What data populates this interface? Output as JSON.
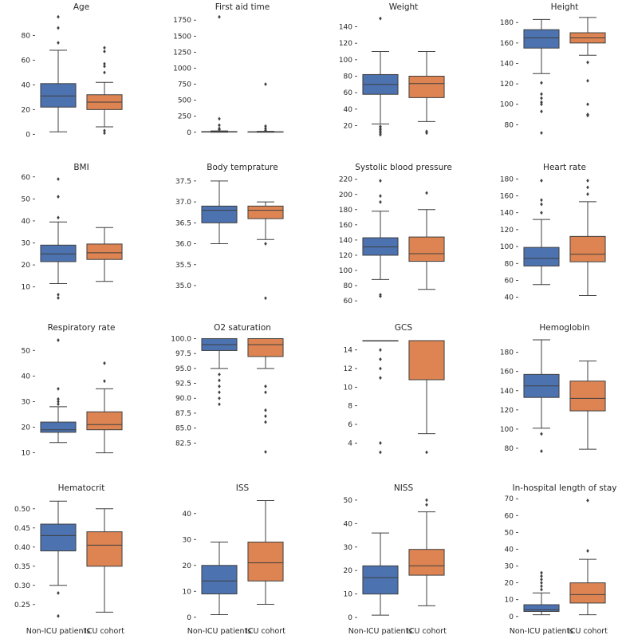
{
  "colors": {
    "non_icu": "#4c72b0",
    "icu": "#dd8452",
    "line": "#3f3f3f",
    "text": "#262626"
  },
  "chart_data": [
    {
      "type": "box",
      "title": "Age",
      "categories": [
        "Non-ICU patients",
        "ICU cohort"
      ],
      "yticks": [
        0,
        20,
        40,
        60,
        80
      ],
      "ylim": [
        -3,
        97
      ],
      "boxes": [
        {
          "whislo": 2,
          "q1": 22,
          "med": 31,
          "q3": 41,
          "whishi": 68,
          "fliers": [
            95,
            86,
            74
          ]
        },
        {
          "whislo": 6,
          "q1": 20,
          "med": 26,
          "q3": 32,
          "whishi": 42,
          "fliers": [
            70,
            67,
            57,
            55,
            50,
            3,
            1
          ]
        }
      ]
    },
    {
      "type": "box",
      "title": "First aid time",
      "categories": [
        "Non-ICU patients",
        "ICU cohort"
      ],
      "yticks": [
        0,
        250,
        500,
        750,
        1000,
        1250,
        1500,
        1750
      ],
      "ylim": [
        -90,
        1840
      ],
      "boxes": [
        {
          "whislo": 0,
          "q1": 3,
          "med": 5,
          "q3": 10,
          "whishi": 20,
          "fliers": [
            1800,
            210,
            110,
            60,
            40
          ]
        },
        {
          "whislo": 0,
          "q1": 2,
          "med": 4,
          "q3": 8,
          "whishi": 15,
          "fliers": [
            750,
            95,
            60,
            30
          ]
        }
      ]
    },
    {
      "type": "box",
      "title": "Weight",
      "categories": [
        "Non-ICU patients",
        "ICU cohort"
      ],
      "yticks": [
        20,
        40,
        60,
        80,
        100,
        120,
        140
      ],
      "ylim": [
        5,
        155
      ],
      "boxes": [
        {
          "whislo": 22,
          "q1": 58,
          "med": 70,
          "q3": 82,
          "whishi": 110,
          "fliers": [
            150,
            19,
            17,
            15,
            13,
            11,
            9
          ]
        },
        {
          "whislo": 25,
          "q1": 54,
          "med": 71,
          "q3": 80,
          "whishi": 110,
          "fliers": [
            13,
            11
          ]
        }
      ]
    },
    {
      "type": "box",
      "title": "Height",
      "categories": [
        "Non-ICU patients",
        "ICU cohort"
      ],
      "yticks": [
        80,
        100,
        120,
        140,
        160,
        180
      ],
      "ylim": [
        67,
        188
      ],
      "boxes": [
        {
          "whislo": 130,
          "q1": 155,
          "med": 165,
          "q3": 173,
          "whishi": 183,
          "fliers": [
            121,
            110,
            106,
            102,
            100,
            93,
            72
          ]
        },
        {
          "whislo": 148,
          "q1": 160,
          "med": 165,
          "q3": 170,
          "whishi": 185,
          "fliers": [
            141,
            123,
            100,
            90,
            89
          ]
        }
      ]
    },
    {
      "type": "box",
      "title": "BMI",
      "categories": [
        "Non-ICU patients",
        "ICU cohort"
      ],
      "yticks": [
        10,
        20,
        30,
        40,
        50,
        60
      ],
      "ylim": [
        3,
        61
      ],
      "boxes": [
        {
          "whislo": 11.5,
          "q1": 21.5,
          "med": 25,
          "q3": 29,
          "whishi": 39.5,
          "fliers": [
            59,
            51,
            41.5,
            6.5,
            5
          ]
        },
        {
          "whislo": 12.5,
          "q1": 22.5,
          "med": 25.5,
          "q3": 29.5,
          "whishi": 37,
          "fliers": []
        }
      ]
    },
    {
      "type": "box",
      "title": "Body temprature",
      "categories": [
        "Non-ICU patients",
        "ICU cohort"
      ],
      "yticks": [
        35.0,
        35.5,
        36.0,
        36.5,
        37.0,
        37.5
      ],
      "ylim": [
        34.6,
        37.65
      ],
      "boxes": [
        {
          "whislo": 36.0,
          "q1": 36.5,
          "med": 36.8,
          "q3": 36.9,
          "whishi": 37.5,
          "fliers": []
        },
        {
          "whislo": 36.1,
          "q1": 36.6,
          "med": 36.8,
          "q3": 36.9,
          "whishi": 37.0,
          "fliers": [
            36.0,
            34.7
          ]
        }
      ]
    },
    {
      "type": "box",
      "title": "Systolic blood pressure",
      "categories": [
        "Non-ICU patients",
        "ICU cohort"
      ],
      "yticks": [
        60,
        80,
        100,
        120,
        140,
        160,
        180,
        200,
        220
      ],
      "ylim": [
        58,
        226
      ],
      "boxes": [
        {
          "whislo": 88,
          "q1": 120,
          "med": 131,
          "q3": 143,
          "whishi": 178,
          "fliers": [
            218,
            198,
            190,
            68,
            66
          ]
        },
        {
          "whislo": 75,
          "q1": 112,
          "med": 122,
          "q3": 144,
          "whishi": 180,
          "fliers": [
            202
          ]
        }
      ]
    },
    {
      "type": "box",
      "title": "Heart rate",
      "categories": [
        "Non-ICU patients",
        "ICU cohort"
      ],
      "yticks": [
        40,
        60,
        80,
        100,
        120,
        140,
        160,
        180
      ],
      "ylim": [
        34,
        185
      ],
      "boxes": [
        {
          "whislo": 55,
          "q1": 77,
          "med": 86,
          "q3": 99,
          "whishi": 132,
          "fliers": [
            178,
            155,
            150,
            140
          ]
        },
        {
          "whislo": 42,
          "q1": 82,
          "med": 91,
          "q3": 112,
          "whishi": 153,
          "fliers": [
            178,
            170,
            162
          ]
        }
      ]
    },
    {
      "type": "box",
      "title": "Respiratory rate",
      "categories": [
        "Non-ICU patients",
        "ICU cohort"
      ],
      "yticks": [
        10,
        20,
        30,
        40,
        50
      ],
      "ylim": [
        8,
        56
      ],
      "boxes": [
        {
          "whislo": 14,
          "q1": 18,
          "med": 19,
          "q3": 22,
          "whishi": 28,
          "fliers": [
            54,
            35,
            31,
            30,
            29
          ]
        },
        {
          "whislo": 10,
          "q1": 19,
          "med": 21,
          "q3": 26,
          "whishi": 35,
          "fliers": [
            45,
            38
          ]
        }
      ]
    },
    {
      "type": "box",
      "title": "O2 saturation",
      "categories": [
        "Non-ICU patients",
        "ICU cohort"
      ],
      "yticks": [
        82.5,
        85.0,
        87.5,
        90.0,
        92.5,
        95.0,
        97.5,
        100.0
      ],
      "ylim": [
        80,
        100.6
      ],
      "boxes": [
        {
          "whislo": 95,
          "q1": 98,
          "med": 99,
          "q3": 100,
          "whishi": 100,
          "fliers": [
            94,
            93,
            92,
            91,
            90,
            89
          ]
        },
        {
          "whislo": 95,
          "q1": 97,
          "med": 99,
          "q3": 100,
          "whishi": 100,
          "fliers": [
            92,
            91,
            88,
            87,
            86,
            81
          ]
        }
      ]
    },
    {
      "type": "box",
      "title": "GCS",
      "categories": [
        "Non-ICU patients",
        "ICU cohort"
      ],
      "yticks": [
        4,
        6,
        8,
        10,
        12,
        14
      ],
      "ylim": [
        2.4,
        15.6
      ],
      "boxes": [
        {
          "whislo": 15,
          "q1": 15,
          "med": 15,
          "q3": 15,
          "whishi": 15,
          "fliers": [
            14,
            13,
            12,
            11,
            4,
            3
          ]
        },
        {
          "whislo": 5,
          "q1": 10.8,
          "med": 15,
          "q3": 15,
          "whishi": 15,
          "fliers": [
            3
          ]
        }
      ]
    },
    {
      "type": "box",
      "title": "Hemoglobin",
      "categories": [
        "Non-ICU patients",
        "ICU cohort"
      ],
      "yticks": [
        80,
        100,
        120,
        140,
        160,
        180
      ],
      "ylim": [
        70,
        198
      ],
      "boxes": [
        {
          "whislo": 101,
          "q1": 133,
          "med": 145,
          "q3": 157,
          "whishi": 193,
          "fliers": [
            95,
            77
          ]
        },
        {
          "whislo": 79,
          "q1": 119,
          "med": 132,
          "q3": 150,
          "whishi": 171,
          "fliers": []
        }
      ]
    },
    {
      "type": "box",
      "title": "Hematocrit",
      "categories": [
        "Non-ICU patients",
        "ICU cohort"
      ],
      "yticks": [
        0.25,
        0.3,
        0.35,
        0.4,
        0.45,
        0.5
      ],
      "ylim": [
        0.21,
        0.535
      ],
      "boxes": [
        {
          "whislo": 0.3,
          "q1": 0.39,
          "med": 0.43,
          "q3": 0.46,
          "whishi": 0.52,
          "fliers": [
            0.28,
            0.22
          ]
        },
        {
          "whislo": 0.23,
          "q1": 0.35,
          "med": 0.405,
          "q3": 0.44,
          "whishi": 0.5,
          "fliers": []
        }
      ]
    },
    {
      "type": "box",
      "title": "ISS",
      "categories": [
        "Non-ICU patients",
        "ICU cohort"
      ],
      "yticks": [
        0,
        10,
        20,
        30,
        40
      ],
      "ylim": [
        -1,
        47
      ],
      "boxes": [
        {
          "whislo": 1,
          "q1": 9,
          "med": 14,
          "q3": 20,
          "whishi": 29,
          "fliers": []
        },
        {
          "whislo": 5,
          "q1": 14,
          "med": 21,
          "q3": 29,
          "whishi": 45,
          "fliers": []
        }
      ]
    },
    {
      "type": "box",
      "title": "NISS",
      "categories": [
        "Non-ICU patients",
        "ICU cohort"
      ],
      "yticks": [
        0,
        10,
        20,
        30,
        40,
        50
      ],
      "ylim": [
        -1,
        52
      ],
      "boxes": [
        {
          "whislo": 1,
          "q1": 10,
          "med": 17,
          "q3": 22,
          "whishi": 36,
          "fliers": []
        },
        {
          "whislo": 5,
          "q1": 18,
          "med": 22,
          "q3": 29,
          "whishi": 45,
          "fliers": [
            50,
            48
          ]
        }
      ]
    },
    {
      "type": "box",
      "title": "In-hospital length of stay",
      "categories": [
        "Non-ICU patients",
        "ICU cohort"
      ],
      "yticks": [
        0,
        10,
        20,
        30,
        40,
        50,
        60,
        70
      ],
      "ylim": [
        -2,
        72
      ],
      "boxes": [
        {
          "whislo": 1,
          "q1": 3,
          "med": 4,
          "q3": 7,
          "whishi": 14,
          "fliers": [
            26,
            24,
            22,
            20,
            18,
            16
          ]
        },
        {
          "whislo": 1,
          "q1": 8,
          "med": 13,
          "q3": 20,
          "whishi": 34,
          "fliers": [
            69,
            39
          ]
        }
      ]
    }
  ]
}
